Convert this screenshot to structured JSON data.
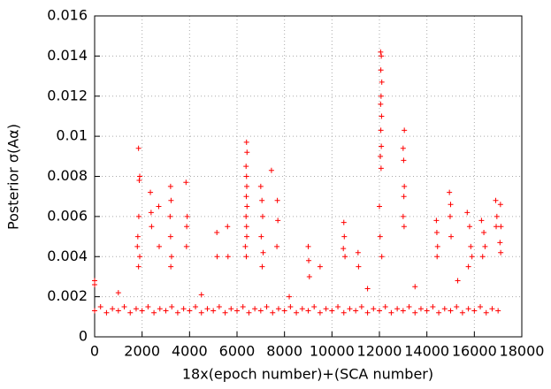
{
  "chart_data": {
    "type": "scatter",
    "marker": "+",
    "color": "#ff0000",
    "grid": true,
    "xlabel": "18x(epoch number)+(SCA number)",
    "ylabel": "Posterior σ(Aα)",
    "xlim": [
      0,
      18000
    ],
    "xticks": [
      0,
      2000,
      4000,
      6000,
      8000,
      10000,
      12000,
      14000,
      16000,
      18000
    ],
    "ylim": [
      0,
      0.016
    ],
    "yticks": [
      0,
      0.002,
      0.004,
      0.006,
      0.008,
      0.01,
      0.012,
      0.014,
      0.016
    ],
    "x": [
      0,
      250,
      500,
      750,
      1000,
      1250,
      1500,
      1750,
      2000,
      2250,
      2500,
      2750,
      3000,
      3250,
      3500,
      3750,
      4000,
      4250,
      4500,
      4750,
      5000,
      5250,
      5500,
      5750,
      6000,
      6250,
      6500,
      6750,
      7000,
      7250,
      7500,
      7750,
      8000,
      8250,
      8500,
      8750,
      9000,
      9250,
      9500,
      9750,
      10000,
      10250,
      10500,
      10750,
      11000,
      11250,
      11500,
      11750,
      12000,
      12250,
      12500,
      12750,
      13000,
      13250,
      13500,
      13750,
      14000,
      14250,
      14500,
      14750,
      15000,
      15250,
      15500,
      15750,
      16000,
      16250,
      16500,
      16750,
      17000,
      0,
      0,
      1850,
      1900,
      1880,
      1860,
      1820,
      1800,
      1900,
      1850,
      2350,
      2380,
      2400,
      2700,
      2720,
      3200,
      3220,
      3180,
      3200,
      3240,
      3210,
      3850,
      3900,
      3880,
      3870,
      5150,
      5160,
      5600,
      5620,
      6400,
      6420,
      6380,
      6400,
      6410,
      6390,
      6420,
      6380,
      6400,
      6410,
      6350,
      6390,
      7000,
      7050,
      7080,
      7020,
      7100,
      7060,
      7450,
      7700,
      7720,
      7680,
      9000,
      9020,
      9050,
      9500,
      10500,
      10520,
      10480,
      10550,
      11100,
      11120,
      12050,
      12080,
      12060,
      12100,
      12070,
      12050,
      12090,
      12060,
      12080,
      12040,
      12070,
      12000,
      12030,
      12100,
      13050,
      13000,
      13020,
      13050,
      13030,
      13000,
      13040,
      14400,
      14420,
      14450,
      14430,
      14950,
      15000,
      14980,
      15020,
      15700,
      15800,
      15850,
      15900,
      15750,
      16300,
      16400,
      16450,
      16350,
      16900,
      16950,
      16920,
      17100,
      17120,
      17080,
      17110,
      1000,
      4500,
      8200,
      11500,
      13500,
      15300
    ],
    "values": [
      0.0013,
      0.0015,
      0.0012,
      0.0014,
      0.0013,
      0.0015,
      0.0012,
      0.0014,
      0.0013,
      0.0015,
      0.0012,
      0.0014,
      0.0013,
      0.0015,
      0.0012,
      0.0014,
      0.0013,
      0.0015,
      0.0012,
      0.0014,
      0.0013,
      0.0015,
      0.0012,
      0.0014,
      0.0013,
      0.0015,
      0.0012,
      0.0014,
      0.0013,
      0.0015,
      0.0012,
      0.0014,
      0.0013,
      0.0015,
      0.0012,
      0.0014,
      0.0013,
      0.0015,
      0.0012,
      0.0014,
      0.0013,
      0.0015,
      0.0012,
      0.0014,
      0.0013,
      0.0015,
      0.0012,
      0.0014,
      0.0013,
      0.0015,
      0.0012,
      0.0014,
      0.0013,
      0.0015,
      0.0012,
      0.0014,
      0.0013,
      0.0015,
      0.0012,
      0.0014,
      0.0013,
      0.0015,
      0.0012,
      0.0014,
      0.0013,
      0.0015,
      0.0012,
      0.0014,
      0.0013,
      0.0026,
      0.0028,
      0.0094,
      0.008,
      0.0078,
      0.006,
      0.005,
      0.0045,
      0.004,
      0.0035,
      0.0072,
      0.0062,
      0.0055,
      0.0065,
      0.0045,
      0.0075,
      0.0068,
      0.006,
      0.005,
      0.004,
      0.0035,
      0.0077,
      0.006,
      0.0055,
      0.0045,
      0.0052,
      0.004,
      0.0055,
      0.004,
      0.0097,
      0.0092,
      0.0085,
      0.008,
      0.0075,
      0.007,
      0.0065,
      0.006,
      0.0055,
      0.005,
      0.0045,
      0.004,
      0.0075,
      0.0068,
      0.006,
      0.005,
      0.0042,
      0.0035,
      0.0083,
      0.0068,
      0.0058,
      0.0045,
      0.0045,
      0.0038,
      0.003,
      0.0035,
      0.0057,
      0.005,
      0.0044,
      0.004,
      0.0042,
      0.0035,
      0.0142,
      0.014,
      0.0133,
      0.0127,
      0.012,
      0.0116,
      0.011,
      0.0103,
      0.0095,
      0.009,
      0.0084,
      0.0065,
      0.005,
      0.004,
      0.0103,
      0.0094,
      0.0088,
      0.0075,
      0.007,
      0.006,
      0.0055,
      0.0058,
      0.0052,
      0.0045,
      0.004,
      0.0072,
      0.0066,
      0.006,
      0.005,
      0.0062,
      0.0055,
      0.0045,
      0.004,
      0.0035,
      0.0058,
      0.0052,
      0.0045,
      0.004,
      0.0068,
      0.006,
      0.0055,
      0.0066,
      0.0055,
      0.0047,
      0.0042,
      0.0022,
      0.0021,
      0.002,
      0.0024,
      0.0025,
      0.0028
    ]
  }
}
